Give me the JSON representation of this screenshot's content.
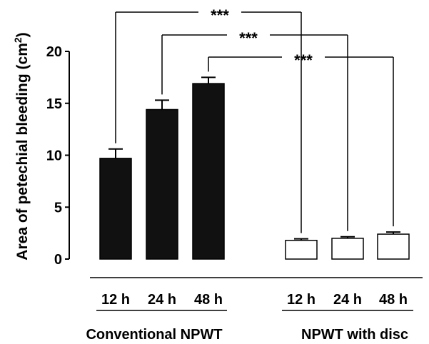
{
  "chart_data": {
    "type": "bar",
    "title": "",
    "ylabel": "Area of petechial bleeding (cm",
    "ylabel_sup": "2",
    "ylabel_close": ")",
    "ylim": [
      0,
      20
    ],
    "yticks": [
      0,
      5,
      10,
      15,
      20
    ],
    "yticklabels": [
      "0",
      "5",
      "10",
      "15",
      "20"
    ],
    "categories": [
      "12 h",
      "24 h",
      "48 h",
      "12 h",
      "24 h",
      "48 h"
    ],
    "values": [
      9.7,
      14.4,
      16.9,
      1.8,
      2.0,
      2.4
    ],
    "errors": [
      0.9,
      0.9,
      0.6,
      0.15,
      0.15,
      0.2
    ],
    "bar_fills": [
      "#111111",
      "#111111",
      "#111111",
      "#ffffff",
      "#ffffff",
      "#ffffff"
    ],
    "groups": [
      {
        "label": "Conventional NPWT",
        "bars": [
          0,
          1,
          2
        ]
      },
      {
        "label": "NPWT with disc",
        "bars": [
          3,
          4,
          5
        ]
      }
    ],
    "significance": [
      {
        "from": 0,
        "to": 3,
        "label": "***"
      },
      {
        "from": 1,
        "to": 4,
        "label": "***"
      },
      {
        "from": 2,
        "to": 5,
        "label": "***"
      }
    ],
    "grid": false,
    "legend": "none"
  }
}
